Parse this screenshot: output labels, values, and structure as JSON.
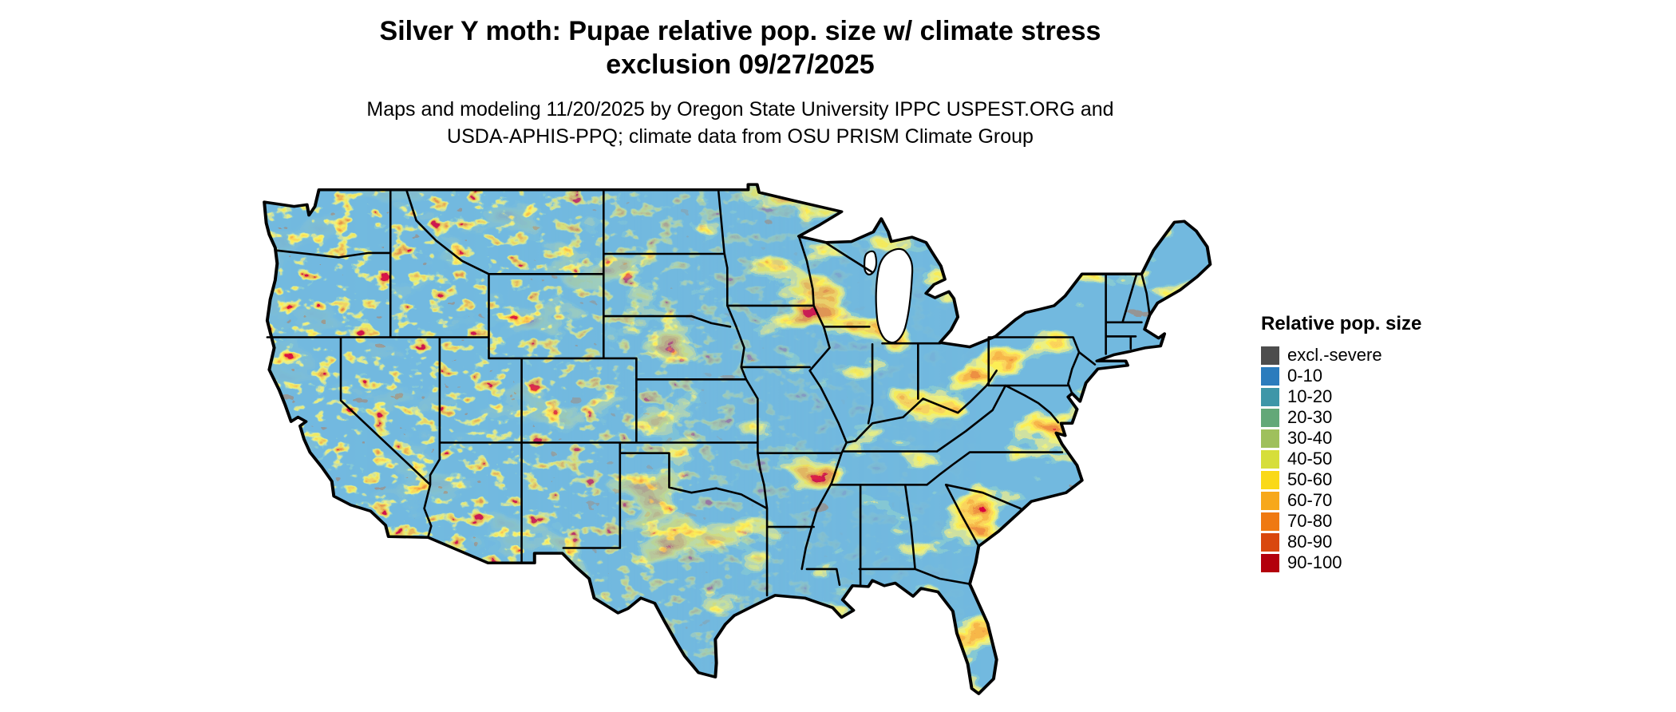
{
  "header": {
    "title_lines": [
      "Silver Y moth: Pupae relative pop. size w/ climate stress",
      "exclusion 09/27/2025"
    ],
    "subtitle_lines": [
      "Maps and modeling 11/20/2025 by Oregon State University IPPC USPEST.ORG and",
      "USDA-APHIS-PPQ; climate data from OSU PRISM Climate Group"
    ]
  },
  "legend": {
    "title": "Relative pop. size",
    "items": [
      {
        "label": "excl.-severe",
        "color": "#4d4d4d"
      },
      {
        "label": "0-10",
        "color": "#2b7cbd"
      },
      {
        "label": "10-20",
        "color": "#3e96a8"
      },
      {
        "label": "20-30",
        "color": "#63a878"
      },
      {
        "label": "30-40",
        "color": "#9fc05c"
      },
      {
        "label": "40-50",
        "color": "#d6de3a"
      },
      {
        "label": "50-60",
        "color": "#fad918"
      },
      {
        "label": "60-70",
        "color": "#f7a81b"
      },
      {
        "label": "70-80",
        "color": "#ef7911"
      },
      {
        "label": "80-90",
        "color": "#d9480e"
      },
      {
        "label": "90-100",
        "color": "#b3000c"
      }
    ]
  }
}
